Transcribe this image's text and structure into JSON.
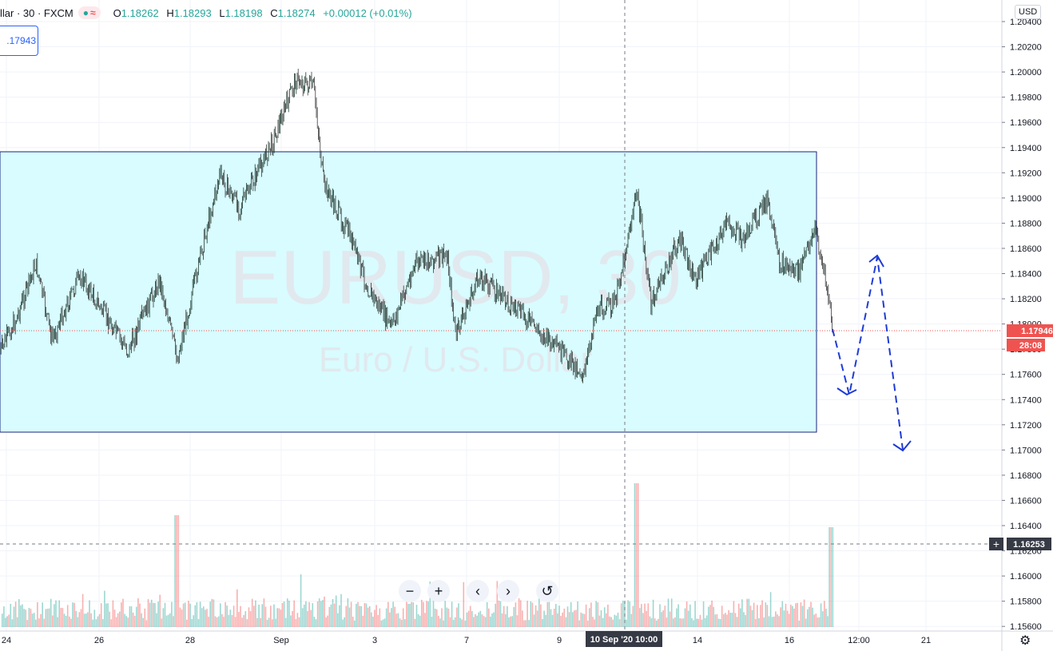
{
  "legend": {
    "symbol": "llar · 30 · FXCM",
    "ohlc": {
      "o_label": "O",
      "o": "1.18262",
      "h_label": "H",
      "h": "1.18293",
      "l_label": "L",
      "l": "1.18198",
      "c_label": "C",
      "c": "1.18274",
      "change": "+0.00012 (+0.01%)"
    }
  },
  "badge_price": ".17943",
  "currency": "USD",
  "watermark": {
    "symbol": "EURUSD, 30",
    "description": "Euro / U.S. Dollar"
  },
  "price_axis": {
    "ticks": [
      "1.20400",
      "1.20200",
      "1.20000",
      "1.19800",
      "1.19600",
      "1.19400",
      "1.19200",
      "1.19000",
      "1.18800",
      "1.18600",
      "1.18400",
      "1.18200",
      "1.18000",
      "1.17800",
      "1.17600",
      "1.17400",
      "1.17200",
      "1.17000",
      "1.16800",
      "1.16600",
      "1.16400",
      "1.16200",
      "1.16000",
      "1.15800",
      "1.15600"
    ],
    "current_price": "1.17946",
    "countdown": "28:08",
    "crosshair_price": "1.16253"
  },
  "time_axis": {
    "ticks": [
      "24",
      "26",
      "28",
      "Sep",
      "3",
      "7",
      "9",
      "14",
      "16",
      "12:00",
      "21"
    ],
    "crosshair_label": "10 Sep '20   10:00"
  },
  "colors": {
    "up": "#26a69a",
    "down": "#ef5350",
    "candle": "#1e3a2f",
    "box_fill": "#d8fcff",
    "box_border": "#1a237e",
    "projection": "#1e3bd6",
    "current_price": "#ef5350",
    "crosshair_badge": "#363a45"
  },
  "controls": {
    "zoom_out": "−",
    "zoom_in": "+",
    "scroll_left": "‹",
    "scroll_right": "›",
    "reset": "↺"
  },
  "icons": {
    "settings": "gear-icon"
  }
}
